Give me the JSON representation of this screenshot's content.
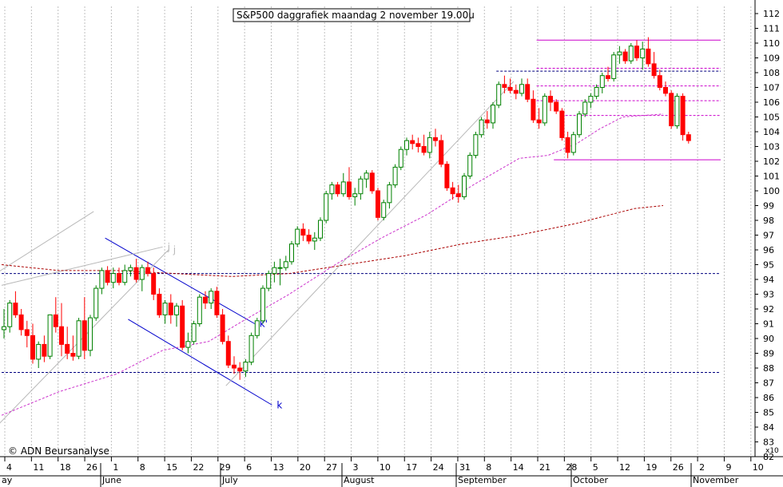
{
  "chart_data": {
    "type": "candlestick",
    "title": "S&P500 daggrafiek maandag 2 november 19.00u",
    "watermark": "© ADN Beursanalyse",
    "y_axis_multiplier": "x10",
    "ylim": [
      82,
      112
    ],
    "y_ticks": [
      82,
      83,
      84,
      85,
      86,
      87,
      88,
      89,
      90,
      91,
      92,
      93,
      94,
      95,
      96,
      97,
      98,
      99,
      100,
      101,
      102,
      103,
      104,
      105,
      106,
      107,
      108,
      109,
      110,
      111,
      112
    ],
    "x_tick_labels": [
      "4",
      "11",
      "18",
      "26",
      "1",
      "8",
      "15",
      "22",
      "29",
      "6",
      "13",
      "20",
      "27",
      "3",
      "10",
      "17",
      "24",
      "31",
      "8",
      "14",
      "21",
      "28",
      "5",
      "12",
      "19",
      "26",
      "2",
      "9",
      "10"
    ],
    "month_labels": [
      "ay",
      "June",
      "July",
      "August",
      "September",
      "October",
      "November"
    ],
    "colors": {
      "up": "#008000",
      "down": "#ff0000",
      "ma_short": "#cc33cc",
      "ma_long": "#aa0000",
      "trend": "#0000cc",
      "trend_light": "#b8b8b8",
      "resistance": "#cc00cc",
      "dashed_level": "#000080"
    },
    "candles": [
      [
        90.6,
        92.0,
        90.0,
        90.8
      ],
      [
        90.8,
        92.6,
        90.4,
        92.4
      ],
      [
        92.4,
        93.2,
        91.4,
        91.6
      ],
      [
        91.6,
        92.0,
        90.2,
        90.6
      ],
      [
        90.6,
        91.2,
        89.4,
        90.2
      ],
      [
        90.2,
        91.0,
        88.3,
        88.6
      ],
      [
        88.6,
        89.8,
        88.0,
        89.6
      ],
      [
        89.6,
        90.2,
        88.4,
        88.8
      ],
      [
        88.8,
        91.6,
        88.6,
        91.6
      ],
      [
        91.6,
        92.8,
        90.4,
        90.8
      ],
      [
        90.8,
        92.4,
        88.8,
        89.6
      ],
      [
        89.6,
        90.8,
        88.6,
        89.0
      ],
      [
        89.0,
        90.2,
        88.5,
        88.8
      ],
      [
        88.8,
        91.4,
        88.6,
        91.2
      ],
      [
        91.2,
        92.8,
        88.6,
        89.2
      ],
      [
        89.2,
        91.6,
        88.8,
        91.4
      ],
      [
        91.4,
        93.6,
        91.2,
        93.4
      ],
      [
        93.4,
        94.8,
        93.0,
        94.6
      ],
      [
        94.6,
        94.9,
        93.6,
        93.8
      ],
      [
        93.8,
        94.8,
        93.4,
        94.4
      ],
      [
        94.4,
        94.8,
        93.6,
        93.8
      ],
      [
        93.8,
        95.0,
        93.6,
        94.6
      ],
      [
        94.6,
        95.0,
        94.2,
        94.8
      ],
      [
        94.8,
        95.4,
        93.8,
        94.0
      ],
      [
        94.0,
        95.0,
        93.2,
        94.8
      ],
      [
        94.8,
        95.2,
        94.2,
        94.4
      ],
      [
        94.4,
        94.8,
        92.6,
        93.0
      ],
      [
        93.0,
        93.4,
        91.4,
        91.6
      ],
      [
        91.6,
        92.6,
        91.0,
        92.4
      ],
      [
        92.4,
        93.0,
        91.0,
        91.6
      ],
      [
        91.6,
        92.4,
        90.8,
        92.2
      ],
      [
        92.2,
        92.6,
        89.2,
        89.4
      ],
      [
        89.4,
        90.4,
        89.0,
        89.8
      ],
      [
        89.8,
        91.2,
        89.6,
        91.0
      ],
      [
        91.0,
        93.0,
        90.8,
        92.8
      ],
      [
        92.8,
        93.2,
        92.0,
        92.4
      ],
      [
        92.4,
        93.4,
        92.0,
        93.2
      ],
      [
        93.2,
        93.5,
        91.4,
        91.6
      ],
      [
        91.6,
        92.0,
        89.6,
        89.8
      ],
      [
        89.8,
        90.2,
        88.0,
        88.2
      ],
      [
        88.2,
        88.8,
        87.6,
        88.0
      ],
      [
        88.0,
        88.4,
        87.2,
        87.8
      ],
      [
        87.8,
        88.6,
        87.4,
        88.4
      ],
      [
        88.4,
        90.4,
        88.2,
        90.2
      ],
      [
        90.2,
        91.4,
        90.0,
        91.2
      ],
      [
        91.2,
        93.6,
        91.0,
        93.4
      ],
      [
        93.4,
        94.6,
        93.2,
        94.4
      ],
      [
        94.4,
        95.2,
        93.8,
        94.8
      ],
      [
        94.8,
        95.4,
        93.6,
        94.8
      ],
      [
        94.8,
        95.6,
        94.6,
        95.2
      ],
      [
        95.2,
        96.6,
        95.0,
        96.4
      ],
      [
        96.4,
        97.6,
        96.2,
        97.4
      ],
      [
        97.4,
        97.8,
        96.6,
        97.0
      ],
      [
        97.0,
        97.4,
        96.4,
        96.6
      ],
      [
        96.6,
        97.2,
        96.0,
        96.8
      ],
      [
        96.8,
        98.2,
        96.6,
        98.0
      ],
      [
        98.0,
        100.0,
        97.8,
        99.8
      ],
      [
        99.8,
        100.6,
        99.4,
        100.4
      ],
      [
        100.4,
        100.6,
        99.6,
        99.8
      ],
      [
        99.8,
        101.2,
        99.6,
        100.6
      ],
      [
        100.6,
        101.6,
        99.4,
        99.6
      ],
      [
        99.6,
        100.2,
        99.0,
        99.8
      ],
      [
        99.8,
        101.0,
        99.4,
        100.8
      ],
      [
        100.8,
        101.4,
        100.2,
        101.2
      ],
      [
        101.2,
        101.4,
        99.8,
        100.0
      ],
      [
        100.0,
        100.2,
        98.0,
        98.2
      ],
      [
        98.2,
        99.4,
        98.0,
        99.2
      ],
      [
        99.2,
        100.6,
        98.8,
        100.4
      ],
      [
        100.4,
        101.8,
        100.2,
        101.6
      ],
      [
        101.6,
        103.0,
        101.4,
        102.8
      ],
      [
        102.8,
        103.6,
        102.4,
        103.4
      ],
      [
        103.4,
        103.8,
        102.8,
        103.2
      ],
      [
        103.2,
        103.6,
        102.6,
        103.0
      ],
      [
        103.0,
        103.8,
        102.4,
        102.6
      ],
      [
        102.6,
        104.0,
        102.2,
        103.6
      ],
      [
        103.6,
        104.2,
        103.0,
        103.4
      ],
      [
        103.4,
        103.8,
        101.6,
        101.8
      ],
      [
        101.8,
        102.0,
        100.0,
        100.2
      ],
      [
        100.2,
        100.6,
        99.4,
        99.8
      ],
      [
        99.8,
        100.4,
        99.2,
        99.6
      ],
      [
        99.6,
        101.2,
        99.4,
        101.0
      ],
      [
        101.0,
        102.6,
        100.8,
        102.4
      ],
      [
        102.4,
        104.0,
        102.2,
        103.8
      ],
      [
        103.8,
        105.0,
        103.6,
        104.8
      ],
      [
        104.8,
        105.4,
        104.2,
        104.6
      ],
      [
        104.6,
        106.0,
        104.2,
        105.8
      ],
      [
        105.8,
        107.4,
        105.6,
        107.2
      ],
      [
        107.2,
        107.8,
        106.6,
        107.0
      ],
      [
        107.0,
        107.6,
        106.6,
        106.8
      ],
      [
        106.8,
        107.2,
        106.2,
        106.6
      ],
      [
        106.6,
        107.6,
        106.4,
        107.2
      ],
      [
        107.2,
        107.6,
        106.0,
        106.2
      ],
      [
        106.2,
        106.8,
        104.6,
        104.8
      ],
      [
        104.8,
        105.6,
        104.2,
        104.6
      ],
      [
        104.6,
        106.6,
        104.4,
        106.4
      ],
      [
        106.4,
        106.8,
        105.4,
        106.0
      ],
      [
        106.0,
        106.2,
        105.2,
        105.4
      ],
      [
        105.4,
        105.6,
        103.4,
        103.6
      ],
      [
        103.6,
        104.0,
        102.2,
        102.6
      ],
      [
        102.6,
        104.0,
        102.4,
        103.8
      ],
      [
        103.8,
        105.4,
        103.6,
        105.2
      ],
      [
        105.2,
        106.2,
        105.0,
        106.0
      ],
      [
        106.0,
        106.6,
        105.6,
        106.4
      ],
      [
        106.4,
        107.2,
        106.2,
        107.0
      ],
      [
        107.0,
        108.0,
        106.6,
        107.8
      ],
      [
        107.8,
        108.4,
        107.4,
        107.6
      ],
      [
        107.6,
        109.4,
        107.4,
        109.2
      ],
      [
        109.2,
        109.8,
        108.6,
        109.4
      ],
      [
        109.4,
        109.6,
        108.6,
        108.8
      ],
      [
        108.8,
        110.0,
        108.6,
        109.8
      ],
      [
        109.8,
        110.2,
        108.8,
        109.0
      ],
      [
        109.0,
        110.1,
        108.2,
        109.6
      ],
      [
        109.6,
        110.4,
        108.4,
        108.6
      ],
      [
        108.6,
        109.4,
        107.6,
        107.8
      ],
      [
        107.8,
        108.2,
        106.8,
        107.0
      ],
      [
        107.0,
        107.4,
        106.4,
        106.6
      ],
      [
        106.6,
        106.8,
        104.2,
        104.4
      ],
      [
        104.4,
        106.6,
        104.2,
        106.4
      ],
      [
        106.4,
        106.6,
        103.4,
        103.8
      ],
      [
        103.8,
        104.0,
        103.2,
        103.4
      ]
    ],
    "ma_short": [
      [
        0,
        84.8
      ],
      [
        10,
        86.4
      ],
      [
        20,
        87.6
      ],
      [
        28,
        89.2
      ],
      [
        36,
        89.8
      ],
      [
        42,
        91.2
      ],
      [
        50,
        93.0
      ],
      [
        58,
        95.0
      ],
      [
        66,
        96.8
      ],
      [
        74,
        98.4
      ],
      [
        82,
        100.4
      ],
      [
        90,
        102.2
      ],
      [
        95,
        102.4
      ],
      [
        100,
        103.2
      ],
      [
        104,
        104.2
      ],
      [
        108,
        105.0
      ],
      [
        115,
        105.2
      ]
    ],
    "ma_long": [
      [
        0,
        95.0
      ],
      [
        10,
        94.6
      ],
      [
        20,
        94.6
      ],
      [
        30,
        94.4
      ],
      [
        40,
        94.2
      ],
      [
        50,
        94.4
      ],
      [
        60,
        95.0
      ],
      [
        70,
        95.6
      ],
      [
        80,
        96.4
      ],
      [
        90,
        97.0
      ],
      [
        100,
        97.8
      ],
      [
        110,
        98.8
      ],
      [
        115,
        99.0
      ]
    ],
    "horizontal_levels": [
      {
        "y": 110.2,
        "from": 93,
        "to": 125,
        "style": "solid",
        "color": "resistance"
      },
      {
        "y": 108.3,
        "from": 93,
        "to": 125,
        "style": "dashed",
        "color": "resistance"
      },
      {
        "y": 108.1,
        "from": 86,
        "to": 125,
        "style": "dashed",
        "color": "dashed_level"
      },
      {
        "y": 107.1,
        "from": 93,
        "to": 125,
        "style": "dashed",
        "color": "resistance"
      },
      {
        "y": 106.1,
        "from": 93,
        "to": 125,
        "style": "dashed",
        "color": "resistance"
      },
      {
        "y": 105.1,
        "from": 98,
        "to": 125,
        "style": "dashed",
        "color": "resistance"
      },
      {
        "y": 102.1,
        "from": 96,
        "to": 125,
        "style": "solid",
        "color": "resistance"
      },
      {
        "y": 94.4,
        "from": 0,
        "to": 125,
        "style": "dashed",
        "color": "dashed_level"
      },
      {
        "y": 87.7,
        "from": 0,
        "to": 125,
        "style": "dashed",
        "color": "dashed_level"
      }
    ],
    "trend_lines": [
      {
        "p1": [
          18,
          96.8
        ],
        "p2": [
          44,
          91.0
        ],
        "label": "k'",
        "color": "trend"
      },
      {
        "p1": [
          22,
          91.3
        ],
        "p2": [
          47,
          85.5
        ],
        "label": "k",
        "color": "trend"
      },
      {
        "p1": [
          -1,
          84.0
        ],
        "p2": [
          29,
          96.0
        ],
        "label": "j",
        "color": "trend_light"
      },
      {
        "p1": [
          -1,
          94.4
        ],
        "p2": [
          16,
          98.6
        ],
        "label": "",
        "color": "trend_light"
      },
      {
        "p1": [
          0,
          93.6
        ],
        "p2": [
          28,
          96.2
        ],
        "label": "j",
        "color": "trend_light"
      },
      {
        "p1": [
          39,
          86.8
        ],
        "p2": [
          89,
          107.4
        ],
        "label": "",
        "color": "trend_light"
      }
    ]
  }
}
